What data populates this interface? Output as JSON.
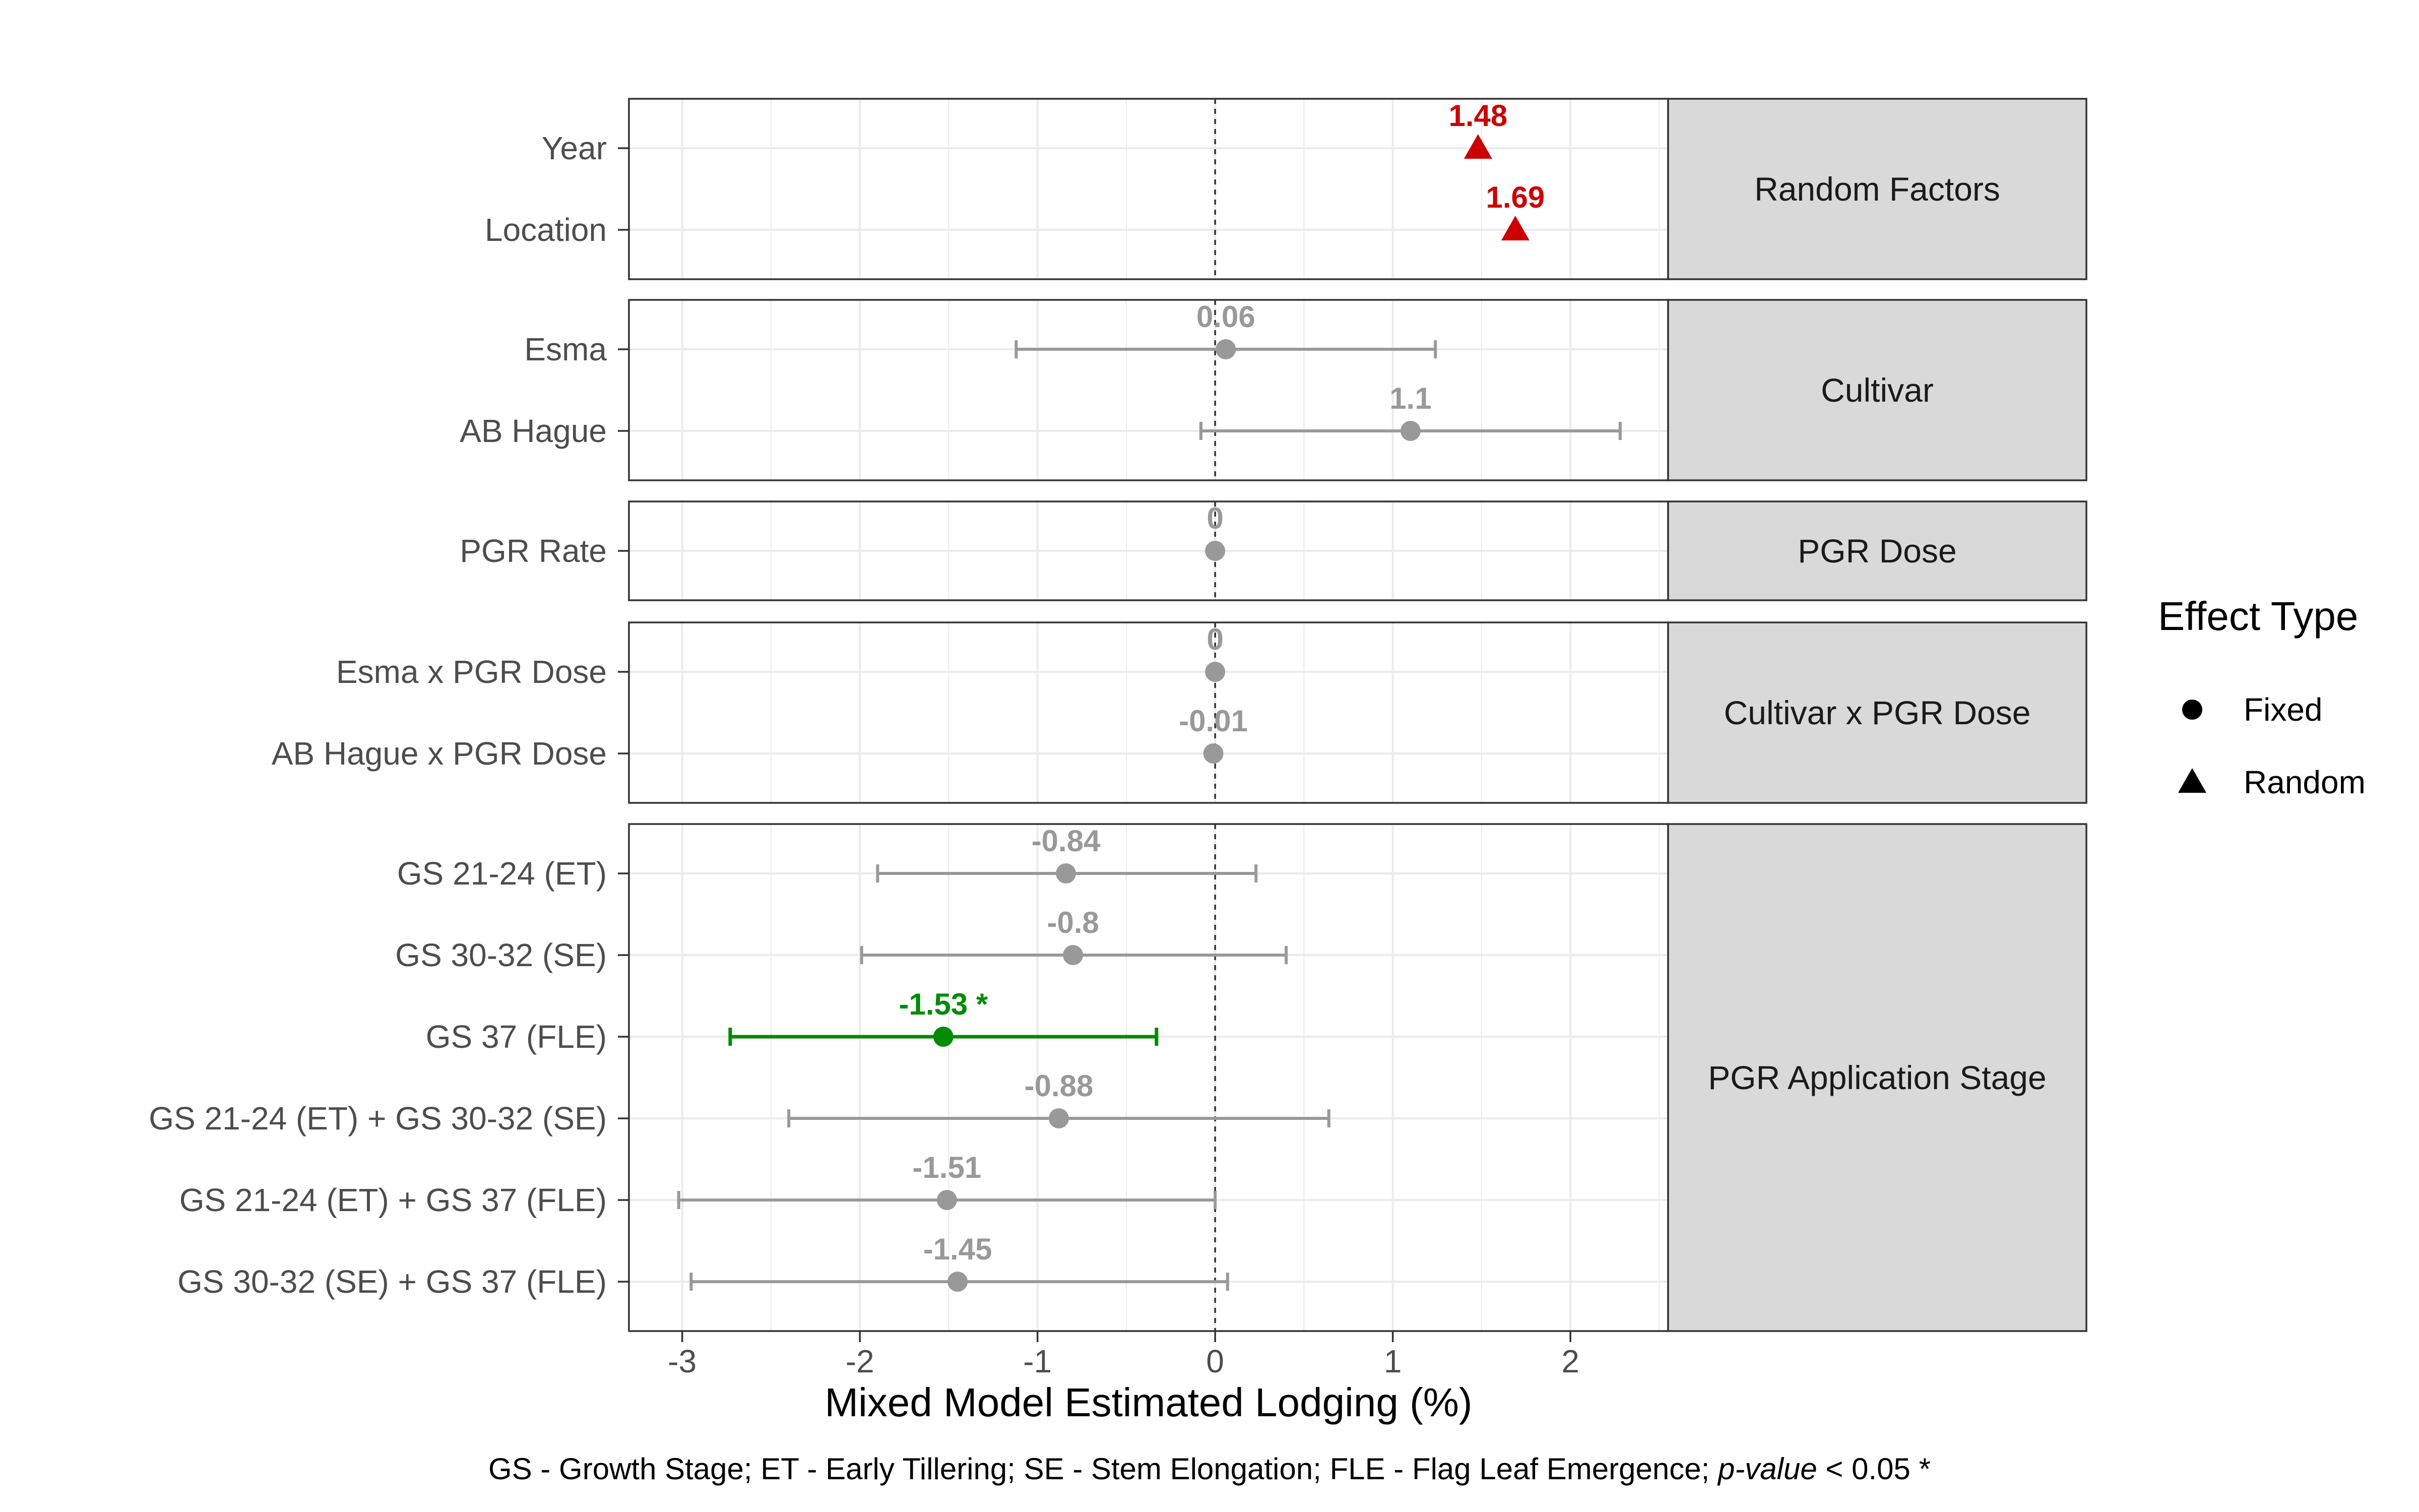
{
  "chart_data": {
    "type": "forest",
    "xlabel": "Mixed Model Estimated Lodging (%)",
    "xlim": [
      -3.3,
      2.55
    ],
    "xticks": [
      -3,
      -2,
      -1,
      0,
      1,
      2
    ],
    "xtick_labels": [
      "-3",
      "-2",
      "-1",
      "0",
      "1",
      "2"
    ],
    "reference_line": 0,
    "grid": true,
    "caption": {
      "text": "GS - Growth Stage; ET - Early Tillering; SE - Stem Elongation; FLE - Flag Leaf Emergence; ",
      "italic": "p-value",
      "suffix": " < 0.05 *"
    },
    "legend": {
      "title": "Effect Type",
      "position": "right",
      "entries": [
        {
          "label": "Fixed",
          "shape": "circle"
        },
        {
          "label": "Random",
          "shape": "triangle"
        }
      ]
    },
    "colors": {
      "random": "#cc0000",
      "significant": "#008b00",
      "nonsignificant": "#999999"
    },
    "panels": [
      {
        "strip": "Random Factors",
        "rows": [
          {
            "label": "Year",
            "estimate": 1.48,
            "value_label": "1.48",
            "lower": null,
            "upper": null,
            "type": "Random",
            "color_key": "random"
          },
          {
            "label": "Location",
            "estimate": 1.69,
            "value_label": "1.69",
            "lower": null,
            "upper": null,
            "type": "Random",
            "color_key": "random"
          }
        ]
      },
      {
        "strip": "Cultivar",
        "rows": [
          {
            "label": "Esma",
            "estimate": 0.06,
            "value_label": "0.06",
            "lower": -1.12,
            "upper": 1.24,
            "type": "Fixed",
            "color_key": "nonsignificant"
          },
          {
            "label": "AB Hague",
            "estimate": 1.1,
            "value_label": "1.1",
            "lower": -0.08,
            "upper": 2.28,
            "type": "Fixed",
            "color_key": "nonsignificant"
          }
        ]
      },
      {
        "strip": "PGR Dose",
        "rows": [
          {
            "label": "PGR Rate",
            "estimate": 0,
            "value_label": "0",
            "lower": null,
            "upper": null,
            "type": "Fixed",
            "color_key": "nonsignificant"
          }
        ]
      },
      {
        "strip": "Cultivar x PGR Dose",
        "rows": [
          {
            "label": "Esma x PGR Dose",
            "estimate": 0,
            "value_label": "0",
            "lower": null,
            "upper": null,
            "type": "Fixed",
            "color_key": "nonsignificant"
          },
          {
            "label": "AB Hague x PGR Dose",
            "estimate": -0.01,
            "value_label": "-0.01",
            "lower": null,
            "upper": null,
            "type": "Fixed",
            "color_key": "nonsignificant"
          }
        ]
      },
      {
        "strip": "PGR Application Stage",
        "rows": [
          {
            "label": "GS 21-24 (ET)",
            "estimate": -0.84,
            "value_label": "-0.84",
            "lower": -1.9,
            "upper": 0.23,
            "type": "Fixed",
            "color_key": "nonsignificant"
          },
          {
            "label": "GS 30-32 (SE)",
            "estimate": -0.8,
            "value_label": "-0.8",
            "lower": -1.99,
            "upper": 0.4,
            "type": "Fixed",
            "color_key": "nonsignificant"
          },
          {
            "label": "GS 37 (FLE)",
            "estimate": -1.53,
            "value_label": "-1.53 *",
            "lower": -2.73,
            "upper": -0.33,
            "type": "Fixed",
            "color_key": "significant"
          },
          {
            "label": "GS 21-24 (ET) + GS 30-32 (SE)",
            "estimate": -0.88,
            "value_label": "-0.88",
            "lower": -2.4,
            "upper": 0.64,
            "type": "Fixed",
            "color_key": "nonsignificant"
          },
          {
            "label": "GS 21-24 (ET) + GS 37 (FLE)",
            "estimate": -1.51,
            "value_label": "-1.51",
            "lower": -3.02,
            "upper": 0.0,
            "type": "Fixed",
            "color_key": "nonsignificant"
          },
          {
            "label": "GS 30-32 (SE) + GS 37 (FLE)",
            "estimate": -1.45,
            "value_label": "-1.45",
            "lower": -2.95,
            "upper": 0.07,
            "type": "Fixed",
            "color_key": "nonsignificant"
          }
        ]
      }
    ]
  }
}
